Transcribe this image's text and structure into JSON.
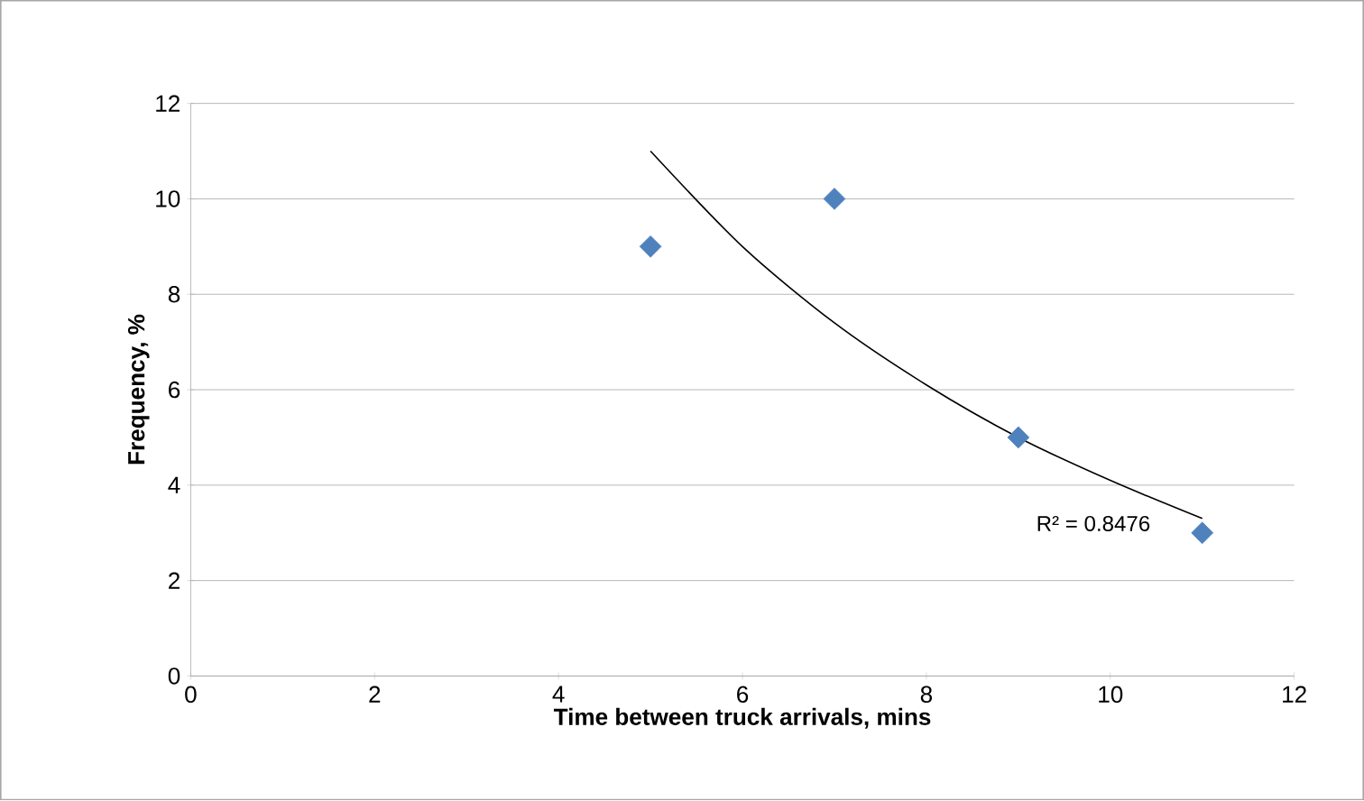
{
  "chart_data": {
    "type": "scatter",
    "xlabel": "Time between truck arrivals, mins",
    "ylabel": "Frequency, %",
    "x": [
      5,
      7,
      9,
      11
    ],
    "series": [
      {
        "color": "#4f81bd",
        "marker": "diamond",
        "values": [
          9,
          10,
          5,
          3
        ]
      },
      {
        "type": "line",
        "color": "#000000",
        "marker": "none",
        "x": [
          5,
          6,
          7,
          8,
          9,
          10,
          11
        ],
        "values": [
          11.0,
          9.0,
          7.4,
          6.1,
          5.0,
          4.1,
          3.3
        ]
      }
    ],
    "xlim": [
      0,
      12
    ],
    "xticks": [
      0,
      2,
      4,
      6,
      8,
      10,
      12
    ],
    "ylim": [
      0,
      12
    ],
    "yticks": [
      0,
      2,
      4,
      6,
      8,
      10,
      12
    ],
    "grid": "y",
    "annotations": [
      "R² = 0.8476"
    ]
  }
}
